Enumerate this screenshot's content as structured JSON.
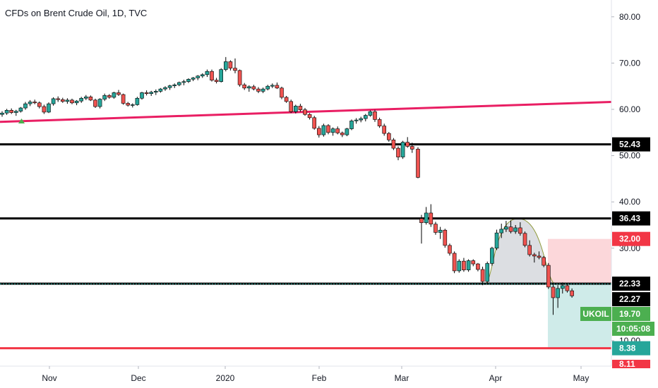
{
  "chart_data": {
    "type": "candlestick",
    "title": "CFDs on Brent Crude Oil, 1D, TVC",
    "y_ticks": [
      "80.00",
      "70.00",
      "60.00",
      "50.00",
      "40.00",
      "30.00",
      "10.00"
    ],
    "x_ticks": [
      "Nov",
      "Dec",
      "2020",
      "Feb",
      "Mar",
      "Apr",
      "May"
    ],
    "ylim": [
      7.5,
      84
    ],
    "horizontal_lines": [
      {
        "value": 52.43,
        "label": "52.43",
        "color": "#000000"
      },
      {
        "value": 36.43,
        "label": "36.43",
        "color": "#000000"
      },
      {
        "value": 22.33,
        "label": "22.33",
        "color": "#000000"
      },
      {
        "value": 8.38,
        "label": "8.38",
        "color": "#f23645"
      }
    ],
    "trendline": {
      "color": "#e91e63",
      "from": {
        "date": "2019-10-01",
        "value": 57.3
      },
      "to": {
        "date": "2020-05-06",
        "value": 61.6
      }
    },
    "trade": {
      "stop": "32.00",
      "entry": "22.27",
      "target": "8.38",
      "stop_color": "#f23645",
      "target_color": "#26a69a"
    },
    "last_price": {
      "symbol": "UKOIL",
      "value": "19.70",
      "countdown": "10:05:08",
      "color": "#4caf50"
    },
    "partial_label": "8.11",
    "candles": [
      [
        58.9,
        59.6,
        58.4,
        59.2
      ],
      [
        59.2,
        60.1,
        58.8,
        59.8
      ],
      [
        59.8,
        60.2,
        59.0,
        59.3
      ],
      [
        59.3,
        59.9,
        58.6,
        59.6
      ],
      [
        59.6,
        60.5,
        59.3,
        60.3
      ],
      [
        60.3,
        61.6,
        59.9,
        61.2
      ],
      [
        61.2,
        62.0,
        60.7,
        61.6
      ],
      [
        61.6,
        62.1,
        61.1,
        61.4
      ],
      [
        61.4,
        61.7,
        60.2,
        60.6
      ],
      [
        60.6,
        61.0,
        59.0,
        59.4
      ],
      [
        59.4,
        61.5,
        59.2,
        61.2
      ],
      [
        61.2,
        62.6,
        60.8,
        62.3
      ],
      [
        62.3,
        62.8,
        61.6,
        62.1
      ],
      [
        62.1,
        62.5,
        61.4,
        61.7
      ],
      [
        61.7,
        62.4,
        61.2,
        62.0
      ],
      [
        62.0,
        62.3,
        61.1,
        61.4
      ],
      [
        61.4,
        62.0,
        60.9,
        61.8
      ],
      [
        61.8,
        62.7,
        61.4,
        62.4
      ],
      [
        62.4,
        63.1,
        62.0,
        62.7
      ],
      [
        62.7,
        63.0,
        61.8,
        62.0
      ],
      [
        62.0,
        62.3,
        60.3,
        60.6
      ],
      [
        60.6,
        62.4,
        60.2,
        62.2
      ],
      [
        62.2,
        63.4,
        61.8,
        63.0
      ],
      [
        63.0,
        63.3,
        62.3,
        62.6
      ],
      [
        62.6,
        63.8,
        62.3,
        63.6
      ],
      [
        63.6,
        64.2,
        62.9,
        63.2
      ],
      [
        63.2,
        63.4,
        61.0,
        61.3
      ],
      [
        61.3,
        61.6,
        60.6,
        60.9
      ],
      [
        60.9,
        61.3,
        60.4,
        61.0
      ],
      [
        61.0,
        62.7,
        60.8,
        62.4
      ],
      [
        62.4,
        63.8,
        62.1,
        63.6
      ],
      [
        63.6,
        64.1,
        63.0,
        63.4
      ],
      [
        63.4,
        64.0,
        62.9,
        63.7
      ],
      [
        63.7,
        64.3,
        63.1,
        63.9
      ],
      [
        63.9,
        64.6,
        63.6,
        64.4
      ],
      [
        64.4,
        65.0,
        64.0,
        64.7
      ],
      [
        64.7,
        65.3,
        64.2,
        65.1
      ],
      [
        65.1,
        65.6,
        64.6,
        65.3
      ],
      [
        65.3,
        66.0,
        65.0,
        65.8
      ],
      [
        65.8,
        66.4,
        65.2,
        66.0
      ],
      [
        66.0,
        66.7,
        65.7,
        66.5
      ],
      [
        66.5,
        67.0,
        66.1,
        66.8
      ],
      [
        66.8,
        67.4,
        66.3,
        67.2
      ],
      [
        67.2,
        67.8,
        66.8,
        67.5
      ],
      [
        67.5,
        68.6,
        67.0,
        68.2
      ],
      [
        68.2,
        68.6,
        66.0,
        66.3
      ],
      [
        66.3,
        66.8,
        65.6,
        66.0
      ],
      [
        66.0,
        68.9,
        65.8,
        68.6
      ],
      [
        68.6,
        71.3,
        68.2,
        70.3
      ],
      [
        70.3,
        70.6,
        68.4,
        68.9
      ],
      [
        68.9,
        71.0,
        67.8,
        68.4
      ],
      [
        68.4,
        68.6,
        64.9,
        65.3
      ],
      [
        65.3,
        65.7,
        64.2,
        64.6
      ],
      [
        64.6,
        65.2,
        63.8,
        64.9
      ],
      [
        64.9,
        65.3,
        64.1,
        64.4
      ],
      [
        64.4,
        64.8,
        63.5,
        63.9
      ],
      [
        63.9,
        64.7,
        63.5,
        64.4
      ],
      [
        64.4,
        65.3,
        64.1,
        65.0
      ],
      [
        65.0,
        65.6,
        64.6,
        65.2
      ],
      [
        65.2,
        65.8,
        64.4,
        64.6
      ],
      [
        64.6,
        64.9,
        62.2,
        62.6
      ],
      [
        62.6,
        62.9,
        61.4,
        61.7
      ],
      [
        61.7,
        62.1,
        59.2,
        59.5
      ],
      [
        59.5,
        61.0,
        59.1,
        60.7
      ],
      [
        60.7,
        61.2,
        59.5,
        59.9
      ],
      [
        59.9,
        60.3,
        58.6,
        58.9
      ],
      [
        58.9,
        59.2,
        57.8,
        58.2
      ],
      [
        58.2,
        58.6,
        55.6,
        55.9
      ],
      [
        55.9,
        56.4,
        53.9,
        54.5
      ],
      [
        54.5,
        56.9,
        54.1,
        56.5
      ],
      [
        56.5,
        56.8,
        54.6,
        55.0
      ],
      [
        55.0,
        56.1,
        54.3,
        55.8
      ],
      [
        55.8,
        56.3,
        54.6,
        54.9
      ],
      [
        54.9,
        55.2,
        54.0,
        54.5
      ],
      [
        54.5,
        56.0,
        54.2,
        55.8
      ],
      [
        55.8,
        57.8,
        55.5,
        57.5
      ],
      [
        57.5,
        58.1,
        56.9,
        57.7
      ],
      [
        57.7,
        58.4,
        57.2,
        58.0
      ],
      [
        58.0,
        59.0,
        57.4,
        58.7
      ],
      [
        58.7,
        59.8,
        58.4,
        59.5
      ],
      [
        59.5,
        59.9,
        57.3,
        57.8
      ],
      [
        57.8,
        58.2,
        56.0,
        56.4
      ],
      [
        56.4,
        56.9,
        54.3,
        54.8
      ],
      [
        54.8,
        55.1,
        53.0,
        53.4
      ],
      [
        53.4,
        53.8,
        51.2,
        51.6
      ],
      [
        51.6,
        52.0,
        49.0,
        49.7
      ],
      [
        49.7,
        53.2,
        49.3,
        52.9
      ],
      [
        52.9,
        54.0,
        51.7,
        52.0
      ],
      [
        52.0,
        52.8,
        50.6,
        51.4
      ],
      [
        51.4,
        51.8,
        45.1,
        45.3
      ],
      [
        36.4,
        37.2,
        31.0,
        35.5
      ],
      [
        35.5,
        38.9,
        35.1,
        37.6
      ],
      [
        37.6,
        39.5,
        34.6,
        35.2
      ],
      [
        35.2,
        35.7,
        32.9,
        33.4
      ],
      [
        33.4,
        34.6,
        32.0,
        33.9
      ],
      [
        33.9,
        34.2,
        30.1,
        30.6
      ],
      [
        30.6,
        31.0,
        28.4,
        28.9
      ],
      [
        28.9,
        29.3,
        24.6,
        25.1
      ],
      [
        25.1,
        27.6,
        24.7,
        27.2
      ],
      [
        27.2,
        27.9,
        24.9,
        25.3
      ],
      [
        25.3,
        27.6,
        24.9,
        27.3
      ],
      [
        27.3,
        27.6,
        26.1,
        26.6
      ],
      [
        26.6,
        26.8,
        25.0,
        25.4
      ],
      [
        25.4,
        26.0,
        22.0,
        22.8
      ],
      [
        22.8,
        27.1,
        22.4,
        26.7
      ],
      [
        26.7,
        30.3,
        26.2,
        30.0
      ],
      [
        30.0,
        34.0,
        29.6,
        33.3
      ],
      [
        33.3,
        35.3,
        32.2,
        34.1
      ],
      [
        34.1,
        35.9,
        33.5,
        34.6
      ],
      [
        34.6,
        36.0,
        33.2,
        33.6
      ],
      [
        33.6,
        35.0,
        33.1,
        34.4
      ],
      [
        34.4,
        35.6,
        32.7,
        33.2
      ],
      [
        33.2,
        33.6,
        30.2,
        30.6
      ],
      [
        30.6,
        31.7,
        28.2,
        28.6
      ],
      [
        28.6,
        29.0,
        26.9,
        28.3
      ],
      [
        28.3,
        29.3,
        27.6,
        28.0
      ],
      [
        28.0,
        28.3,
        25.9,
        26.3
      ],
      [
        26.3,
        26.8,
        21.2,
        21.6
      ],
      [
        21.6,
        22.1,
        15.6,
        19.3
      ],
      [
        19.3,
        22.0,
        17.1,
        21.3
      ],
      [
        21.3,
        22.6,
        20.2,
        21.9
      ],
      [
        21.9,
        22.5,
        20.4,
        20.8
      ],
      [
        20.8,
        21.3,
        19.3,
        19.7
      ]
    ]
  }
}
